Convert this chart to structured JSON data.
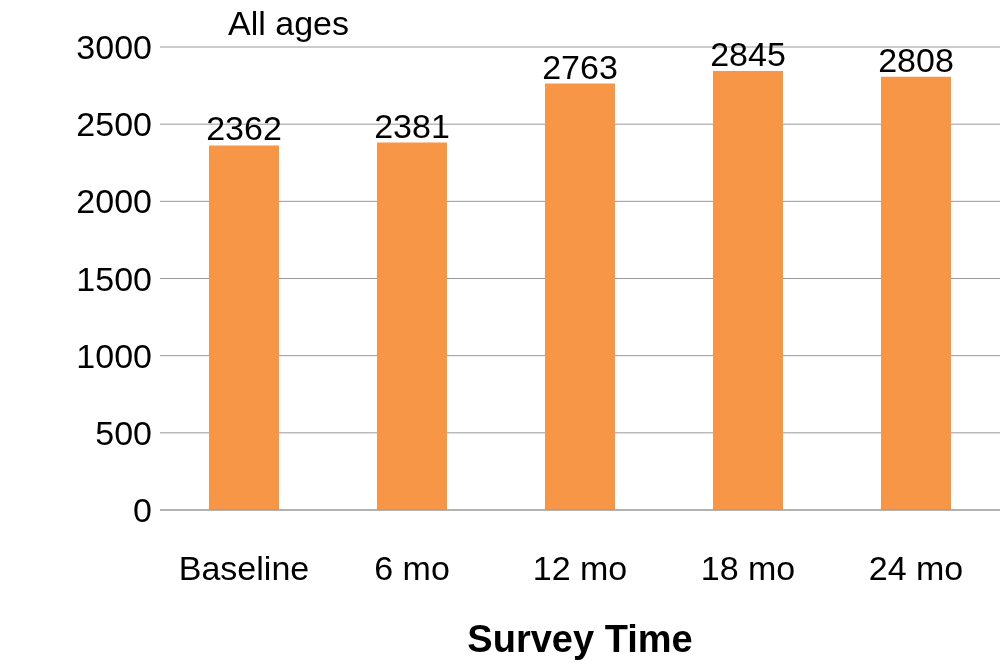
{
  "chart_data": {
    "type": "bar",
    "title": "All ages",
    "xlabel": "Survey Time",
    "categories": [
      "Baseline",
      "6 mo",
      "12 mo",
      "18 mo",
      "24 mo"
    ],
    "values": [
      2362,
      2381,
      2763,
      2845,
      2808
    ],
    "color": "#f79646",
    "ylim": [
      0,
      3000
    ],
    "yticks": [
      0,
      500,
      1000,
      1500,
      2000,
      2500,
      3000
    ],
    "grid": "y",
    "data_labels": true
  }
}
